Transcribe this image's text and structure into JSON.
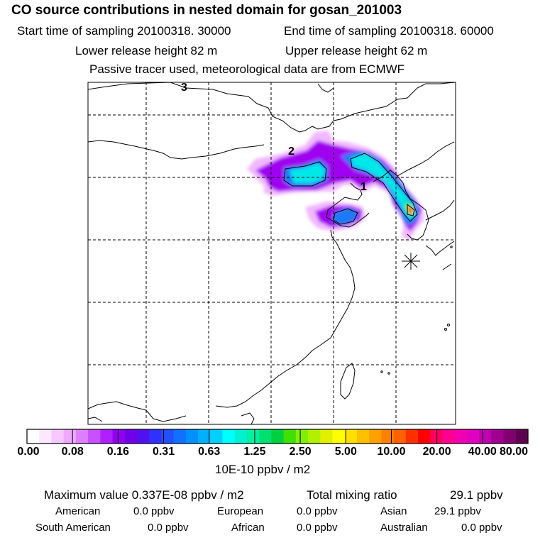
{
  "header": {
    "title": "CO  source contributions in nested domain for gosan_201003",
    "start_label": "Start time of sampling 20100318. 30000",
    "end_label": "End time of sampling 20100318. 60000",
    "lower_label": "Lower release height   82 m",
    "upper_label": "Upper release height   62 m",
    "info": "Passive tracer used, meteorological data are from ECMWF"
  },
  "map": {
    "labels": [
      "3",
      "2",
      "1"
    ],
    "colors": {
      "light": "#f0b0ff",
      "purple": "#a000f0",
      "blue": "#1e7aff",
      "cyan": "#00e8e8",
      "green": "#00d050",
      "yellow": "#f0f000",
      "orange": "#ff9000",
      "red": "#ff0000",
      "magenta": "#ff00a0"
    }
  },
  "colorbar": {
    "tick_labels": [
      "0.00",
      "0.08",
      "0.16",
      "0.31",
      "0.63",
      "1.25",
      "2.50",
      "5.00",
      "10.00",
      "20.00",
      "40.00",
      "80.00"
    ],
    "unit": "10E-10 ppbv / m2",
    "colors": [
      "#ffffff",
      "#fde8ff",
      "#f6c8ff",
      "#eea8ff",
      "#dd80ff",
      "#c850ff",
      "#b020ff",
      "#9000f0",
      "#7000e8",
      "#5010f0",
      "#3030ff",
      "#2050ff",
      "#1070ff",
      "#0090ff",
      "#00b0ff",
      "#00d0ff",
      "#00ffff",
      "#00f0d0",
      "#00f0a0",
      "#00e070",
      "#00d040",
      "#40e000",
      "#80f000",
      "#b0f000",
      "#e0f000",
      "#ffff00",
      "#ffe000",
      "#ffc000",
      "#ffa000",
      "#ff8000",
      "#ff6000",
      "#ff3000",
      "#ff0000",
      "#ff0060",
      "#ff0090",
      "#f000b0",
      "#e000c0",
      "#c000b0",
      "#a00090",
      "#800070",
      "#600050"
    ]
  },
  "footer": {
    "max_label": "Maximum value  0.337E-08 ppbv / m2",
    "total_label": "Total mixing ratio",
    "total_value": "29.1 ppbv",
    "american_label": "American",
    "american_value": "0.0 ppbv",
    "european_label": "European",
    "european_value": "0.0 ppbv",
    "asian_label": "Asian",
    "asian_value": "29.1 ppbv",
    "south_american_label": "South American",
    "south_american_value": "0.0 ppbv",
    "african_label": "African",
    "african_value": "0.0 ppbv",
    "australian_label": "Australian",
    "australian_value": "0.0 ppbv"
  }
}
